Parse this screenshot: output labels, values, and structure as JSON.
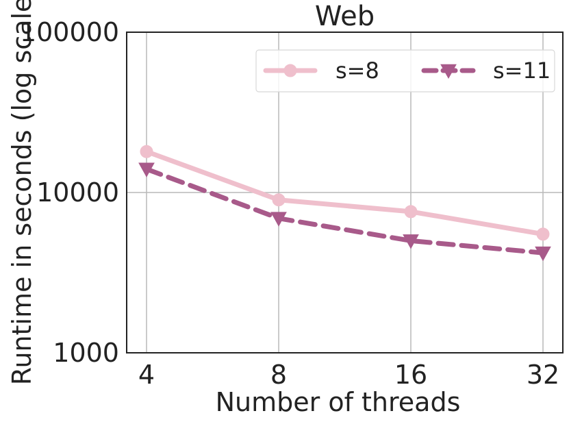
{
  "chart_data": {
    "type": "line",
    "title": "Web",
    "xlabel": "Number of threads",
    "ylabel": "Runtime in seconds (log scale)",
    "x": [
      4,
      8,
      16,
      32
    ],
    "x_tick_labels": [
      "4",
      "8",
      "16",
      "32"
    ],
    "y_scale": "log",
    "ylim": [
      1000,
      100000
    ],
    "y_ticks": [
      1000,
      10000,
      100000
    ],
    "y_tick_labels": [
      "1000",
      "10000",
      "100000"
    ],
    "grid": true,
    "legend_position": "top-right",
    "series": [
      {
        "name": "s=8",
        "values": [
          18000,
          9000,
          7600,
          5500
        ],
        "color": "#efbfcc",
        "line_style": "solid",
        "marker": "circle"
      },
      {
        "name": "s=11",
        "values": [
          14000,
          6900,
          5000,
          4200
        ],
        "color": "#a85a8a",
        "line_style": "dashed",
        "marker": "triangle-down"
      }
    ]
  }
}
